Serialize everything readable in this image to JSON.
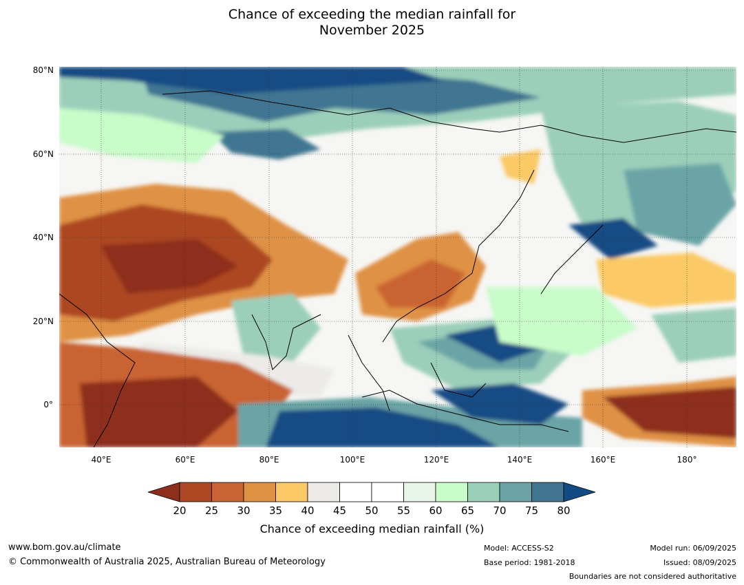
{
  "title": {
    "line1": "Chance of exceeding the median rainfall for",
    "line2": "November 2025"
  },
  "map": {
    "lat_labels": [
      "80°N",
      "60°N",
      "40°N",
      "20°N",
      "0°"
    ],
    "lon_labels": [
      "40°E",
      "60°E",
      "80°E",
      "100°E",
      "120°E",
      "140°E",
      "160°E",
      "180°"
    ],
    "extent": {
      "lon_min": 30,
      "lon_max": 192,
      "lat_min": -10,
      "lat_max": 80
    }
  },
  "colorbar": {
    "ticks": [
      "20",
      "25",
      "30",
      "35",
      "40",
      "45",
      "50",
      "55",
      "60",
      "65",
      "70",
      "75",
      "80"
    ],
    "colors": {
      "under": "#8e2f1c",
      "bins": [
        "#ad4724",
        "#c96332",
        "#df9144",
        "#fbc965",
        "#ecebe8",
        "#ffffff",
        "#ffffff",
        "#e9f5e8",
        "#c8fcc9",
        "#9bcfba",
        "#6ba4a6",
        "#417692"
      ],
      "over": "#124b84"
    },
    "label": "Chance of exceeding median rainfall (%)"
  },
  "footer": {
    "website": "www.bom.gov.au/climate",
    "copyright": "© Commonwealth of Australia 2025, Australian Bureau of Meteorology",
    "model": "Model: ACCESS-S2",
    "base_period": "Base period: 1981-2018",
    "model_run": "Model run: 06/09/2025",
    "issued": "Issued: 08/09/2025",
    "disclaimer": "Boundaries are not considered authoritative"
  }
}
